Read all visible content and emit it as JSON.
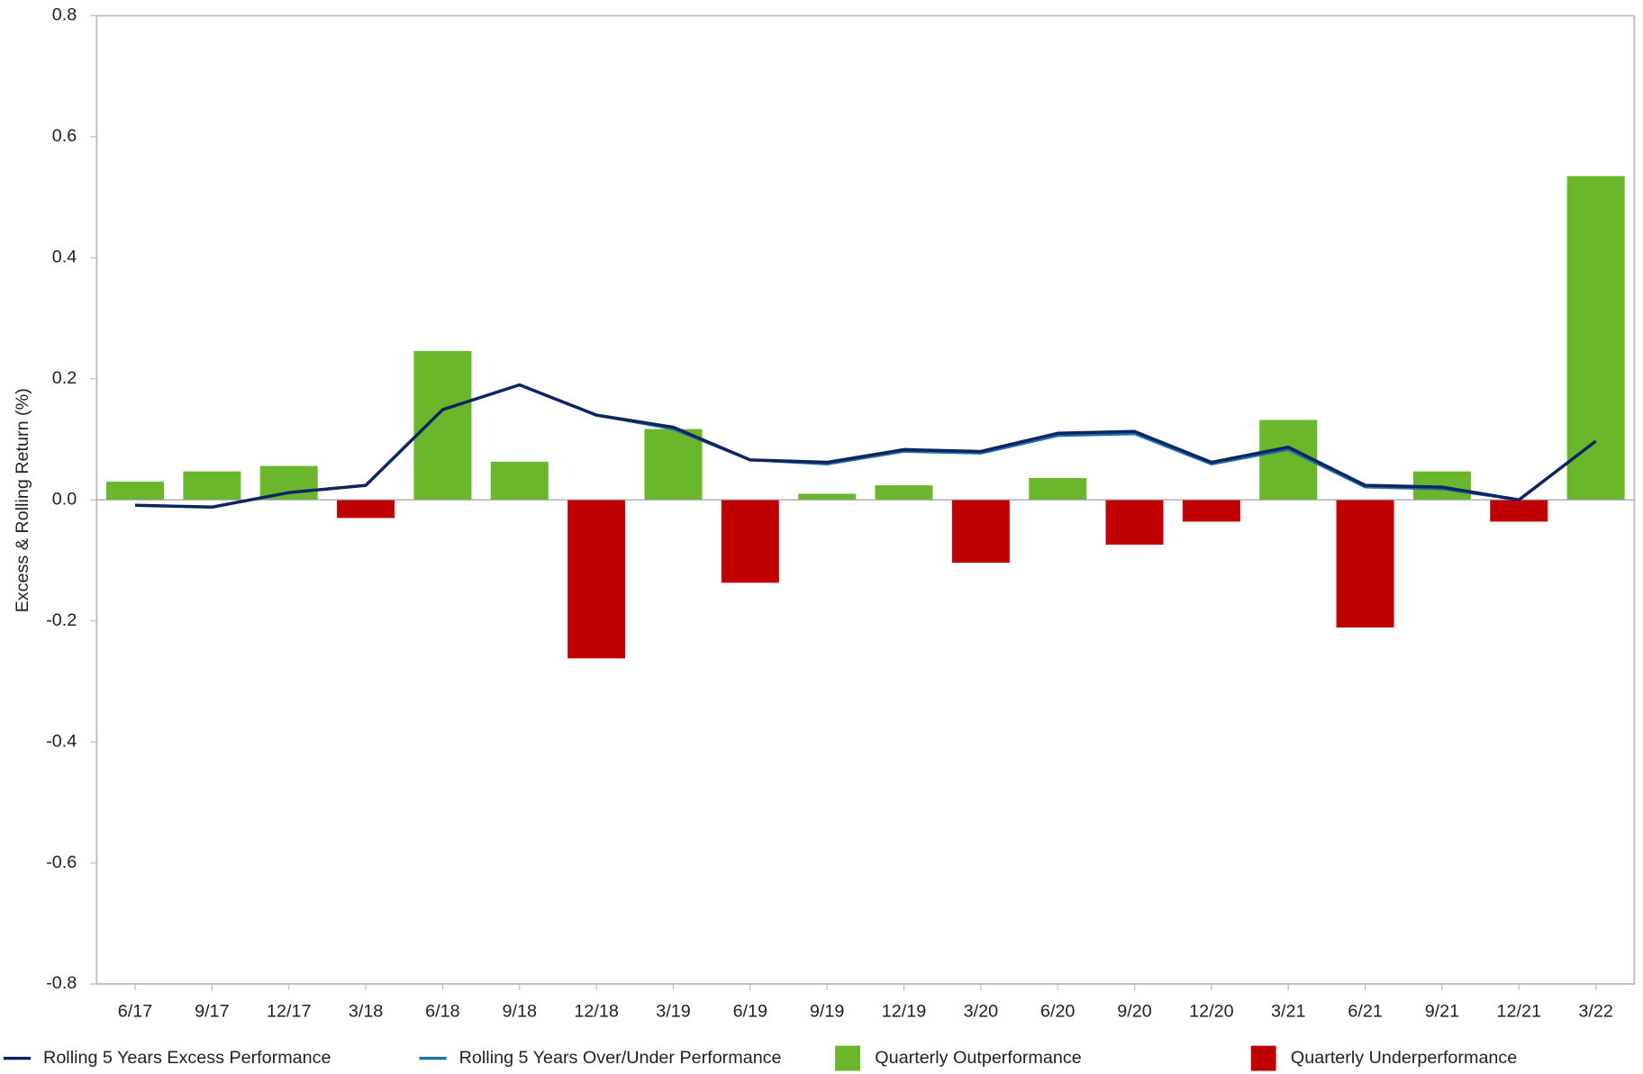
{
  "chart_data": {
    "type": "bar-line",
    "y_label": "Excess & Rolling Return (%)",
    "categories": [
      "6/17",
      "9/17",
      "12/17",
      "3/18",
      "6/18",
      "9/18",
      "12/18",
      "3/19",
      "6/19",
      "9/19",
      "12/19",
      "3/20",
      "6/20",
      "9/20",
      "12/20",
      "3/21",
      "6/21",
      "9/21",
      "12/21",
      "3/22"
    ],
    "series": [
      {
        "name": "Rolling 5 Years Excess Performance",
        "kind": "line",
        "color": "#0d2463",
        "values": [
          -0.009,
          -0.012,
          0.012,
          0.024,
          0.149,
          0.19,
          0.14,
          0.12,
          0.066,
          0.062,
          0.083,
          0.08,
          0.11,
          0.113,
          0.062,
          0.087,
          0.024,
          0.021,
          0.0,
          0.097
        ]
      },
      {
        "name": "Rolling 5 Years Over/Under Performance",
        "kind": "line",
        "color": "#1f6fa8",
        "values": [
          -0.009,
          -0.012,
          0.012,
          0.024,
          0.149,
          0.19,
          0.14,
          0.117,
          0.066,
          0.059,
          0.08,
          0.077,
          0.106,
          0.109,
          0.059,
          0.083,
          0.021,
          0.018,
          0.0,
          0.097
        ]
      },
      {
        "name": "Quarterly Outperformance",
        "kind": "bar",
        "color": "#6ab72c",
        "values": [
          0.03,
          0.047,
          0.056,
          null,
          0.246,
          0.063,
          null,
          0.117,
          null,
          0.01,
          0.024,
          null,
          0.036,
          null,
          null,
          0.132,
          null,
          0.047,
          null,
          0.535
        ]
      },
      {
        "name": "Quarterly Underperformance",
        "kind": "bar",
        "color": "#c00000",
        "values": [
          null,
          null,
          null,
          -0.03,
          null,
          null,
          -0.262,
          null,
          -0.137,
          null,
          null,
          -0.104,
          null,
          -0.074,
          -0.036,
          null,
          -0.211,
          null,
          -0.036,
          null
        ]
      }
    ],
    "ylim": [
      -0.8,
      0.8
    ],
    "yticks": [
      -0.8,
      -0.6,
      -0.4,
      -0.2,
      {
        "value": 0,
        "label": "0.0"
      },
      0.2,
      0.4,
      0.6,
      0.8
    ]
  }
}
